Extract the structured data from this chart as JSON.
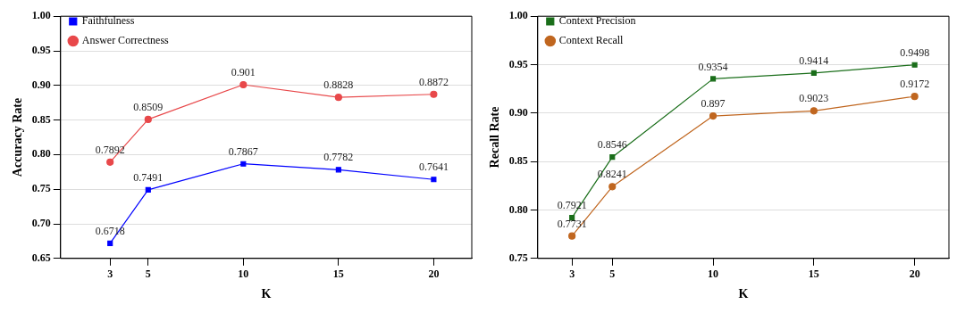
{
  "chart_data": [
    {
      "type": "line",
      "xlabel": "K",
      "ylabel": "Accuracy Rate",
      "x": [
        3,
        5,
        10,
        15,
        20
      ],
      "series": [
        {
          "name": "Faithfulness",
          "color": "#0000ff",
          "marker": "square",
          "values": [
            0.6718,
            0.7491,
            0.7867,
            0.7782,
            0.7641
          ]
        },
        {
          "name": "Answer Correctness",
          "color": "#e8484a",
          "marker": "circle",
          "values": [
            0.7892,
            0.8509,
            0.901,
            0.8828,
            0.8872
          ]
        }
      ],
      "xlim": [
        0.4,
        22
      ],
      "xticks": [
        3,
        5,
        10,
        15,
        20
      ],
      "ylim": [
        0.65,
        1.0
      ],
      "yticks": [
        {
          "value": 0.65,
          "label": "0.65"
        },
        {
          "value": 0.7,
          "label": "0.70"
        },
        {
          "value": 0.75,
          "label": "0.75"
        },
        {
          "value": 0.8,
          "label": "0.80"
        },
        {
          "value": 0.85,
          "label": "0.85"
        },
        {
          "value": 0.9,
          "label": "0.90"
        },
        {
          "value": 0.95,
          "label": "0.95"
        },
        {
          "value": 1.0,
          "label": "1.00"
        }
      ],
      "grid": "y",
      "legend": "top left",
      "data_labels": true,
      "line_style": "solid"
    },
    {
      "type": "line",
      "xlabel": "K",
      "ylabel": "Recall Rate",
      "x": [
        3,
        5,
        10,
        15,
        20
      ],
      "series": [
        {
          "name": "Context Precision",
          "color": "#1a6e1a",
          "marker": "square",
          "values": [
            0.7921,
            0.8546,
            0.9354,
            0.9414,
            0.9498
          ]
        },
        {
          "name": "Context Recall",
          "color": "#c0661f",
          "marker": "circle",
          "values": [
            0.7731,
            0.8241,
            0.897,
            0.9023,
            0.9172
          ]
        }
      ],
      "xlim": [
        1.3,
        21.7
      ],
      "xticks": [
        3,
        5,
        10,
        15,
        20
      ],
      "ylim": [
        0.75,
        1.0
      ],
      "yticks": [
        {
          "value": 0.75,
          "label": "0.75"
        },
        {
          "value": 0.8,
          "label": "0.80"
        },
        {
          "value": 0.85,
          "label": "0.85"
        },
        {
          "value": 0.9,
          "label": "0.90"
        },
        {
          "value": 0.95,
          "label": "0.95"
        },
        {
          "value": 1.0,
          "label": "1.00"
        }
      ],
      "grid": "y",
      "legend": "top left",
      "data_labels": true,
      "line_style": "solid"
    }
  ]
}
